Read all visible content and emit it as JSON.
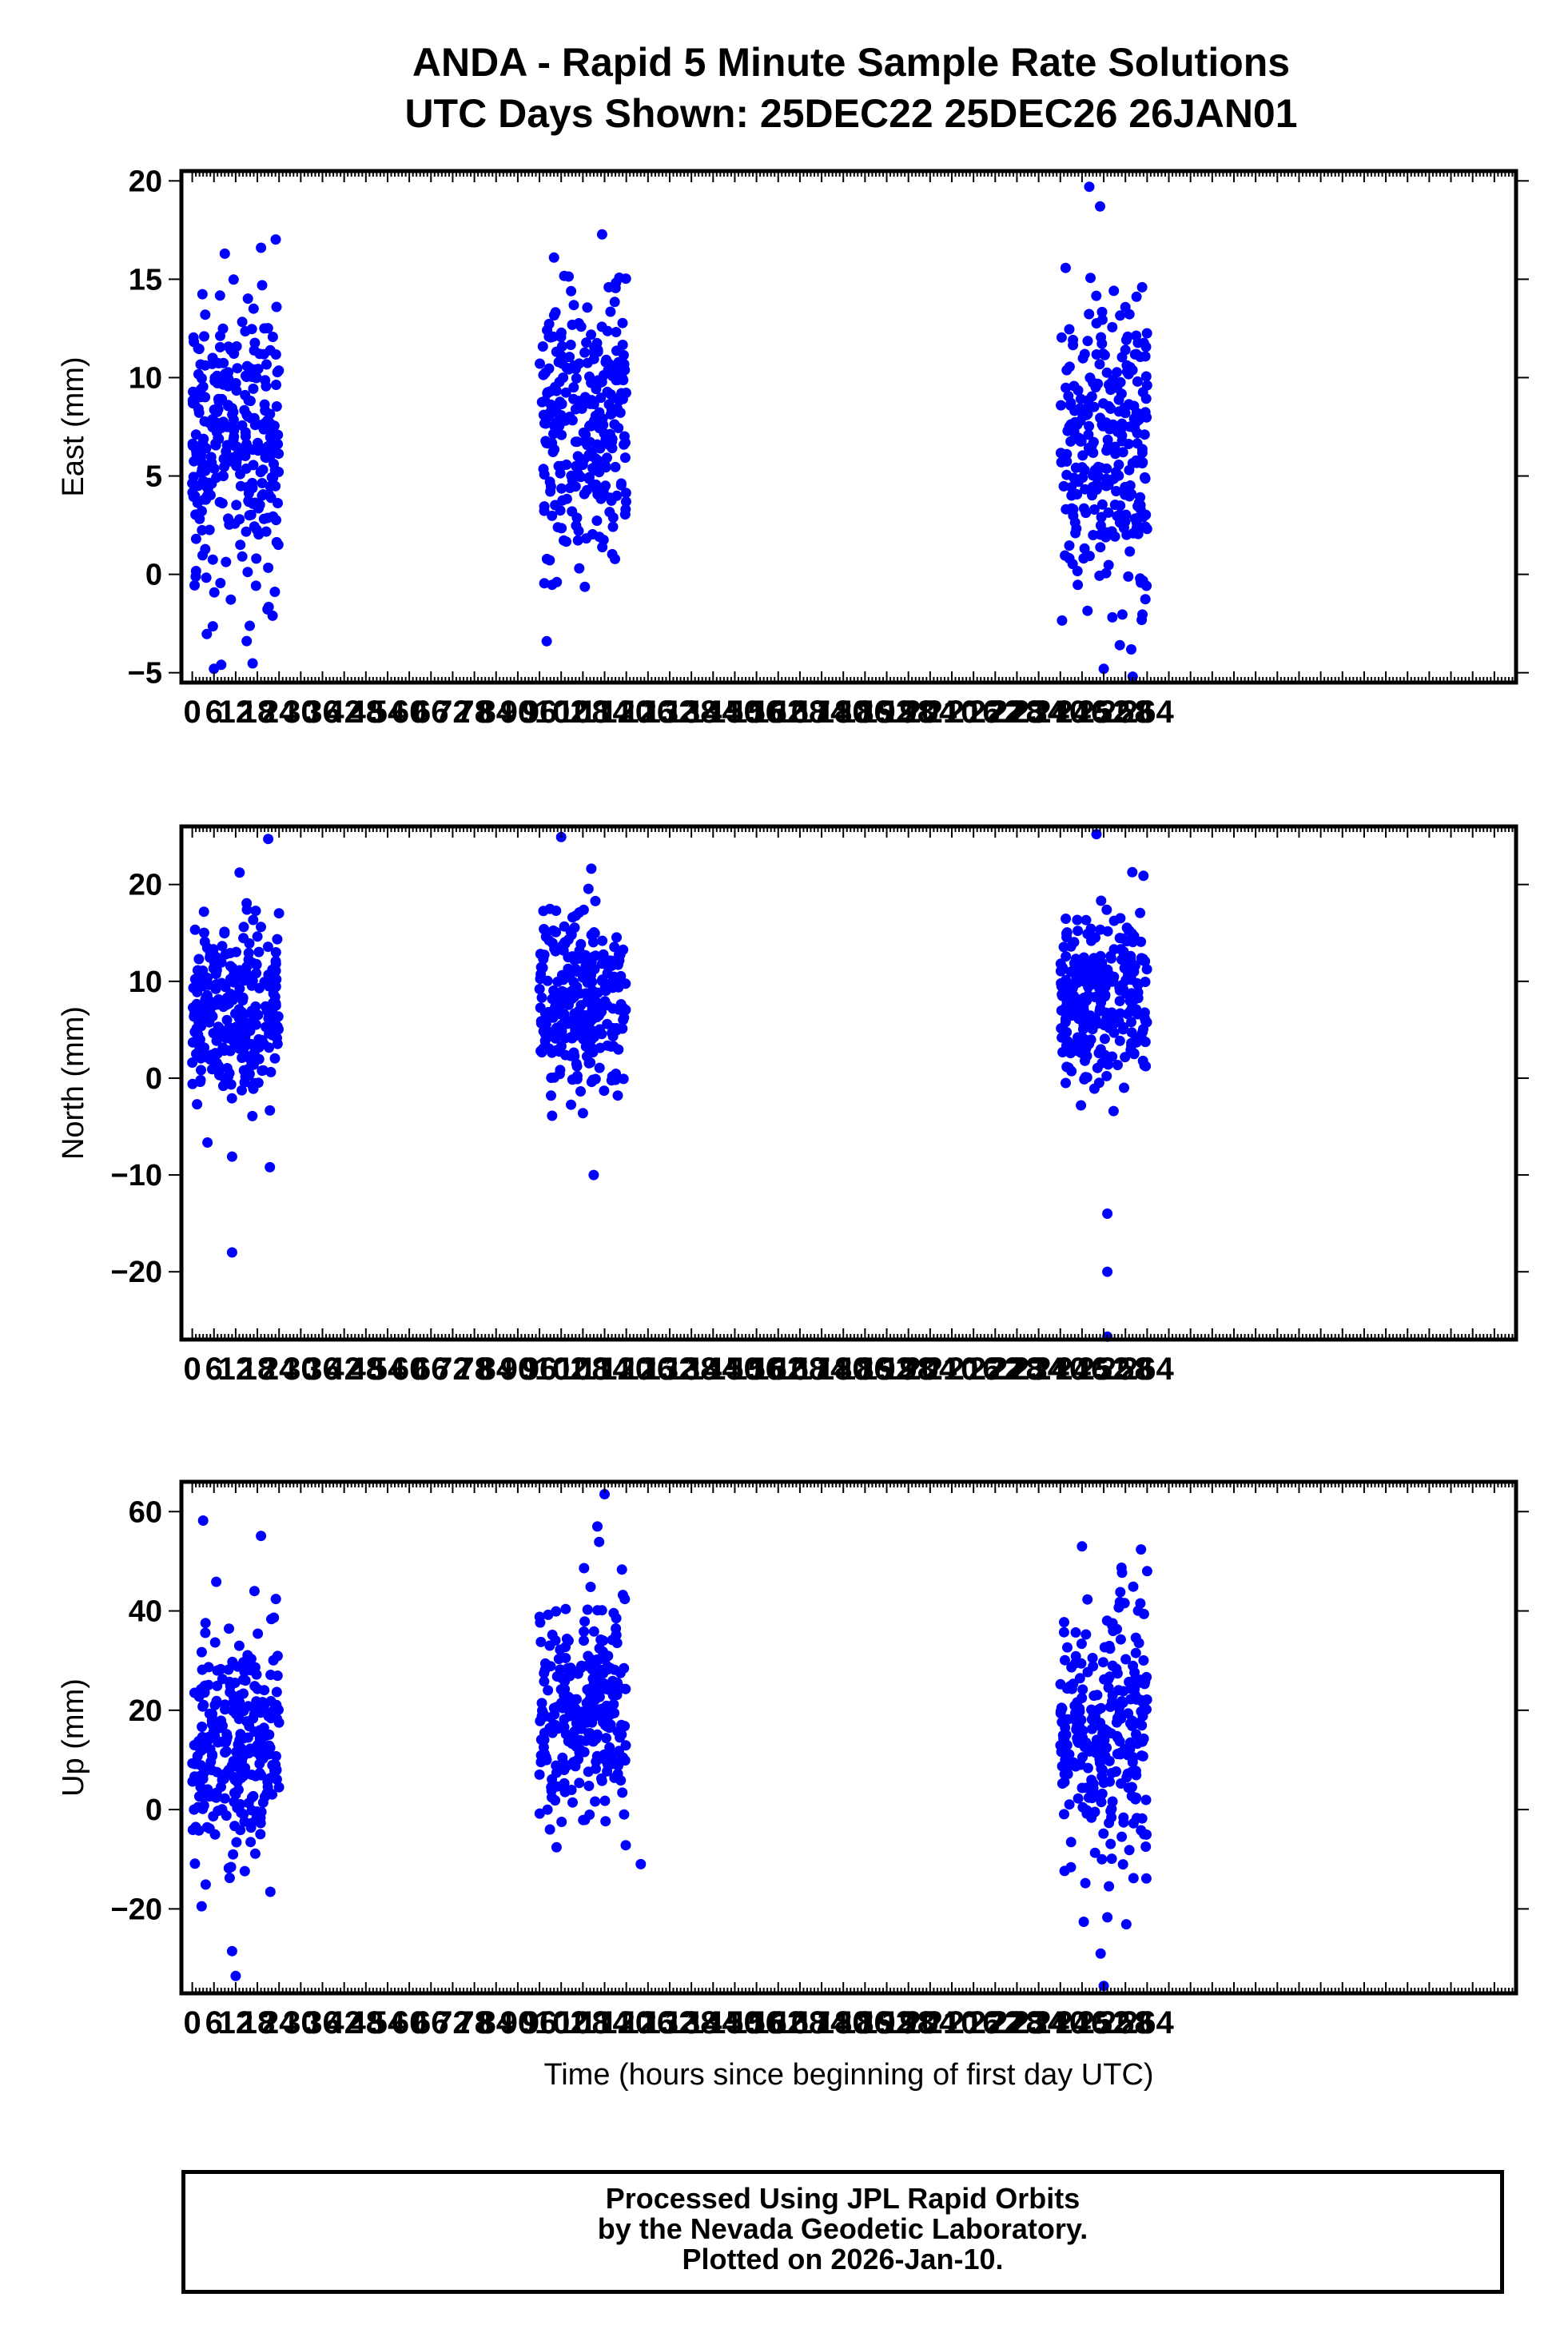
{
  "title": "ANDA - Rapid 5 Minute Sample Rate Solutions",
  "subtitle": "UTC Days Shown:  25DEC22 25DEC26 26JAN01",
  "footer": {
    "line1": "Processed Using JPL Rapid Orbits",
    "line2": "by the Nevada Geodetic Laboratory.",
    "line3": "Plotted on 2026-Jan-10."
  },
  "colors": {
    "points": "#0000ff",
    "axes": "#000000",
    "background": "#ffffff"
  },
  "chart_data": [
    {
      "type": "scatter",
      "ylabel": "East (mm)",
      "xlabel": "",
      "xlim": [
        -3,
        366
      ],
      "ylim": [
        -5.5,
        20.5
      ],
      "xticks": [
        "0",
        "6",
        "12",
        "18",
        "24",
        "30",
        "36",
        "42",
        "48",
        "54",
        "60",
        "66",
        "72",
        "78",
        "84",
        "90",
        "96",
        "102",
        "108",
        "114",
        "120",
        "126",
        "132",
        "138",
        "144",
        "150",
        "156",
        "162",
        "168",
        "174",
        "180",
        "186",
        "192",
        "198",
        "204",
        "210",
        "216",
        "222",
        "228",
        "234",
        "240",
        "246",
        "252",
        "258",
        "264"
      ],
      "yticks": [
        -5,
        0,
        5,
        10,
        15,
        20
      ],
      "grid": false,
      "clusters": [
        {
          "x_range": [
            0,
            24
          ],
          "y_center": 6.5,
          "y_spread": 3.8,
          "n": 290
        },
        {
          "x_range": [
            96,
            120
          ],
          "y_center": 7.5,
          "y_spread": 3.5,
          "n": 280
        },
        {
          "x_range": [
            240,
            264
          ],
          "y_center": 6.5,
          "y_spread": 4.0,
          "n": 280
        }
      ],
      "notable_points": [
        [
          6,
          -4.8
        ],
        [
          8,
          -4.6
        ],
        [
          9,
          16.3
        ],
        [
          19,
          16.6
        ],
        [
          100,
          16.1
        ],
        [
          98,
          -3.4
        ],
        [
          248,
          19.7
        ],
        [
          251,
          18.7
        ],
        [
          252,
          -4.8
        ],
        [
          260,
          -5.2
        ]
      ]
    },
    {
      "type": "scatter",
      "ylabel": "North (mm)",
      "xlabel": "",
      "xlim": [
        -3,
        366
      ],
      "ylim": [
        -27,
        26
      ],
      "xticks": [
        "0",
        "6",
        "12",
        "18",
        "24",
        "30",
        "36",
        "42",
        "48",
        "54",
        "60",
        "66",
        "72",
        "78",
        "84",
        "90",
        "96",
        "102",
        "108",
        "114",
        "120",
        "126",
        "132",
        "138",
        "144",
        "150",
        "156",
        "162",
        "168",
        "174",
        "180",
        "186",
        "192",
        "198",
        "204",
        "210",
        "216",
        "222",
        "228",
        "234",
        "240",
        "246",
        "252",
        "258",
        "264"
      ],
      "yticks": [
        -20,
        -10,
        0,
        10,
        20
      ],
      "grid": false,
      "clusters": [
        {
          "x_range": [
            0,
            24
          ],
          "y_center": 7.0,
          "y_spread": 4.5,
          "n": 290
        },
        {
          "x_range": [
            96,
            120
          ],
          "y_center": 7.5,
          "y_spread": 4.5,
          "n": 280
        },
        {
          "x_range": [
            240,
            264
          ],
          "y_center": 8.0,
          "y_spread": 4.5,
          "n": 280
        }
      ],
      "notable_points": [
        [
          21,
          24.7
        ],
        [
          11,
          -18.0
        ],
        [
          11,
          -8.1
        ],
        [
          102,
          24.9
        ],
        [
          111,
          -10.0
        ],
        [
          250,
          25.2
        ],
        [
          253,
          -20.0
        ],
        [
          253,
          -26.7
        ],
        [
          253,
          -14.0
        ],
        [
          263,
          20.9
        ]
      ]
    },
    {
      "type": "scatter",
      "ylabel": "Up (mm)",
      "xlabel": "Time (hours since beginning of first day UTC)",
      "xlim": [
        -3,
        366
      ],
      "ylim": [
        -37,
        66
      ],
      "xticks": [
        "0",
        "6",
        "12",
        "18",
        "24",
        "30",
        "36",
        "42",
        "48",
        "54",
        "60",
        "66",
        "72",
        "78",
        "84",
        "90",
        "96",
        "102",
        "108",
        "114",
        "120",
        "126",
        "132",
        "138",
        "144",
        "150",
        "156",
        "162",
        "168",
        "174",
        "180",
        "186",
        "192",
        "198",
        "204",
        "210",
        "216",
        "222",
        "228",
        "234",
        "240",
        "246",
        "252",
        "258",
        "264"
      ],
      "yticks": [
        -20,
        0,
        20,
        40,
        60
      ],
      "grid": false,
      "clusters": [
        {
          "x_range": [
            0,
            24
          ],
          "y_center": 13.0,
          "y_spread": 11.0,
          "n": 290
        },
        {
          "x_range": [
            96,
            120
          ],
          "y_center": 19.0,
          "y_spread": 11.0,
          "n": 280
        },
        {
          "x_range": [
            240,
            264
          ],
          "y_center": 15.0,
          "y_spread": 13.0,
          "n": 280
        }
      ],
      "notable_points": [
        [
          3,
          58.2
        ],
        [
          19,
          55.1
        ],
        [
          12,
          -33.5
        ],
        [
          11,
          -28.5
        ],
        [
          114,
          63.5
        ],
        [
          112,
          57.0
        ],
        [
          124,
          -11.0
        ],
        [
          246,
          53.0
        ],
        [
          252,
          -35.5
        ],
        [
          264,
          48.0
        ]
      ]
    }
  ]
}
